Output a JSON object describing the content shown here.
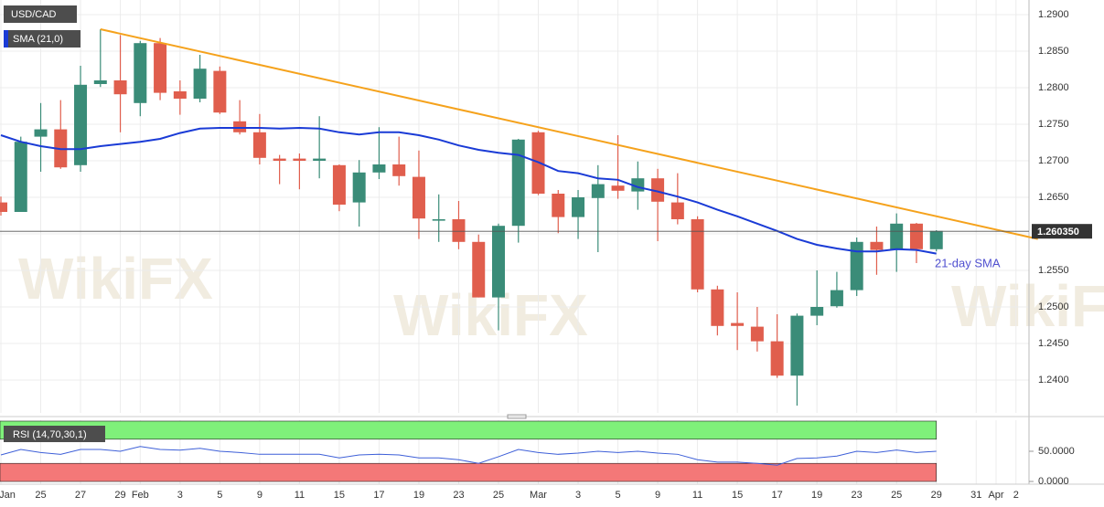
{
  "chart_data": [
    {
      "type": "candlestick",
      "title": "USD/CAD",
      "watermark": "WikiFX",
      "categories": [
        "Jan",
        null,
        "25",
        null,
        "27",
        null,
        "29",
        "Feb",
        null,
        "3",
        null,
        "5",
        null,
        "9",
        null,
        "11",
        null,
        "15",
        null,
        "17",
        null,
        "19",
        null,
        "23",
        null,
        "25",
        null,
        "Mar",
        null,
        "3",
        null,
        "5",
        null,
        "9",
        null,
        "11",
        null,
        "15",
        null,
        "17",
        null,
        "19",
        null,
        "23",
        null,
        "25",
        null,
        "29",
        null,
        "31",
        "Apr",
        "2"
      ],
      "open": [
        1.2643,
        1.263,
        1.2733,
        1.2743,
        1.2694,
        1.2805,
        1.281,
        1.2779,
        1.2861,
        1.2795,
        1.2785,
        1.2823,
        1.2754,
        1.2739,
        1.2703,
        1.2703,
        1.27,
        1.2694,
        1.2643,
        1.2684,
        1.2695,
        1.2678,
        1.2618,
        1.262,
        1.2589,
        1.2513,
        1.2611,
        1.2739,
        1.2655,
        1.2623,
        1.2649,
        1.2666,
        1.2658,
        1.2676,
        1.2643,
        1.262,
        1.2524,
        1.2478,
        1.2473,
        1.2453,
        1.2406,
        1.2488,
        1.2501,
        1.2523,
        1.2589,
        1.2578,
        1.2614,
        1.2579,
        null,
        null,
        null,
        null
      ],
      "high": [
        1.2651,
        1.2733,
        1.2779,
        1.2783,
        1.283,
        1.288,
        1.2872,
        1.2864,
        1.2868,
        1.281,
        1.2845,
        1.2829,
        1.2783,
        1.2764,
        1.2708,
        1.271,
        1.2761,
        1.2695,
        1.2701,
        1.2746,
        1.2733,
        1.2714,
        1.2654,
        1.2645,
        1.2599,
        1.2614,
        1.273,
        1.2741,
        1.266,
        1.266,
        1.2694,
        1.2735,
        1.2699,
        1.2689,
        1.2683,
        1.2624,
        1.2529,
        1.252,
        1.25,
        1.249,
        1.2491,
        1.255,
        1.2548,
        1.2595,
        1.261,
        1.2628,
        1.2615,
        1.2605,
        null,
        null,
        null,
        null
      ],
      "low": [
        1.2625,
        1.263,
        1.2685,
        1.2689,
        1.2685,
        1.2801,
        1.2739,
        1.2761,
        1.2783,
        1.2763,
        1.278,
        1.2764,
        1.2736,
        1.2695,
        1.2668,
        1.2661,
        1.2676,
        1.2631,
        1.261,
        1.2675,
        1.2666,
        1.2593,
        1.2589,
        1.2579,
        1.2513,
        1.2468,
        1.2588,
        1.2653,
        1.2601,
        1.2593,
        1.2575,
        1.2648,
        1.2633,
        1.259,
        1.2613,
        1.252,
        1.2461,
        1.2441,
        1.2439,
        1.2403,
        1.2365,
        1.2475,
        1.2499,
        1.2515,
        1.2544,
        1.2548,
        1.256,
        1.2576,
        null,
        null,
        null,
        null
      ],
      "close": [
        1.263,
        1.2726,
        1.2743,
        1.2691,
        1.2804,
        1.281,
        1.2791,
        1.2861,
        1.2793,
        1.2785,
        1.2826,
        1.2766,
        1.2739,
        1.2704,
        1.27,
        1.27,
        1.2703,
        1.264,
        1.2684,
        1.2695,
        1.2679,
        1.2621,
        1.262,
        1.2589,
        1.2513,
        1.2611,
        1.2729,
        1.2655,
        1.2623,
        1.265,
        1.2668,
        1.2659,
        1.2676,
        1.2644,
        1.262,
        1.2524,
        1.2474,
        1.2474,
        1.2453,
        1.2406,
        1.2488,
        1.25,
        1.2523,
        1.2589,
        1.2578,
        1.2614,
        1.2579,
        1.2604,
        null,
        null,
        null,
        null
      ],
      "up_color": "#3a8c78",
      "down_color": "#e05e4d",
      "series": [
        {
          "name": "SMA (21,0)",
          "color": "#1a3bd6",
          "values": [
            1.2735,
            1.2726,
            1.272,
            1.2716,
            1.2716,
            1.272,
            1.2723,
            1.2726,
            1.273,
            1.2738,
            1.2744,
            1.2745,
            1.2745,
            1.2745,
            1.2744,
            1.2745,
            1.2744,
            1.2739,
            1.2736,
            1.2739,
            1.2739,
            1.2735,
            1.2729,
            1.2721,
            1.2715,
            1.2711,
            1.2708,
            1.2698,
            1.2686,
            1.2683,
            1.2676,
            1.2674,
            1.2664,
            1.2658,
            1.2651,
            1.2643,
            1.2633,
            1.2624,
            1.2614,
            1.2604,
            1.2593,
            1.2585,
            1.258,
            1.2576,
            1.2576,
            1.2579,
            1.2578,
            1.2573,
            null,
            null,
            null,
            null
          ]
        }
      ],
      "sma_label": "21-day SMA",
      "sma_label_color": "#5050d0",
      "trend_line": {
        "color": "#f5a21c",
        "x": [
          5,
          52.1
        ],
        "values": [
          1.288,
          1.2593
        ]
      },
      "current_price": {
        "value": 1.26035,
        "label": "1.260350"
      },
      "ylim": [
        1.2355,
        1.292
      ],
      "yticks": [
        {
          "value": 1.29,
          "label": "1.2900"
        },
        {
          "value": 1.285,
          "label": "1.2850"
        },
        {
          "value": 1.28,
          "label": "1.2800"
        },
        {
          "value": 1.275,
          "label": "1.2750"
        },
        {
          "value": 1.27,
          "label": "1.2700"
        },
        {
          "value": 1.265,
          "label": "1.2650"
        },
        {
          "value": 1.26,
          "label": "1.2600"
        },
        {
          "value": 1.255,
          "label": "1.2550"
        },
        {
          "value": 1.25,
          "label": "1.2500"
        },
        {
          "value": 1.245,
          "label": "1.2450"
        },
        {
          "value": 1.24,
          "label": "1.2400"
        }
      ],
      "grid": true
    },
    {
      "type": "line",
      "title": "RSI (14,70,30,1)",
      "color": "#3d5fd8",
      "values": [
        44,
        53,
        48,
        45,
        53,
        53,
        50,
        58,
        53,
        52,
        55,
        50,
        48,
        45,
        45,
        45,
        45,
        39,
        44,
        45,
        44,
        39,
        39,
        36,
        30,
        41,
        53,
        48,
        45,
        47,
        50,
        48,
        50,
        47,
        45,
        36,
        32,
        32,
        30,
        27,
        38,
        39,
        42,
        50,
        48,
        52,
        48,
        50,
        null,
        null,
        null,
        null
      ],
      "bands": [
        {
          "from": 70,
          "to": 100,
          "color": "#7ff07a"
        },
        {
          "from": 0,
          "to": 30,
          "color": "#f47878"
        }
      ],
      "ylim": [
        -4.5,
        101.5
      ],
      "yticks": [
        {
          "value": 50,
          "label": "50.0000"
        },
        {
          "value": 0,
          "label": "0.0000"
        }
      ]
    }
  ]
}
